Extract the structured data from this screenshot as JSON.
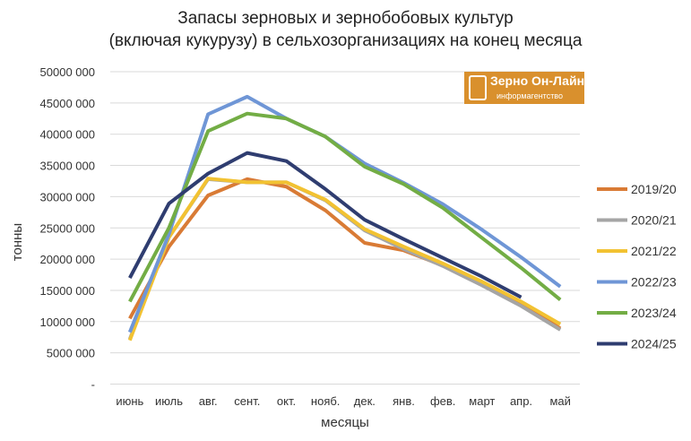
{
  "chart_data": {
    "type": "line",
    "title": "Запасы зерновых и зернобобовых культур",
    "subtitle": "(включая кукурузу) в сельхозорганизациях на конец месяца",
    "xlabel": "месяцы",
    "ylabel": "тонны",
    "ylim": [
      0,
      50000000
    ],
    "yticks": [
      0,
      5000000,
      10000000,
      15000000,
      20000000,
      25000000,
      30000000,
      35000000,
      40000000,
      45000000,
      50000000
    ],
    "ytick_labels": [
      "-",
      "5000 000",
      "10000 000",
      "15000 000",
      "20000 000",
      "25000 000",
      "30000 000",
      "35000 000",
      "40000 000",
      "45000 000",
      "50000 000"
    ],
    "grid": true,
    "legend_position": "right",
    "categories": [
      "июнь",
      "июль",
      "авг.",
      "сент.",
      "окт.",
      "нояб.",
      "дек.",
      "янв.",
      "фев.",
      "март",
      "апр.",
      "май"
    ],
    "series": [
      {
        "name": "2019/20",
        "color": "#d97b35",
        "values": [
          10500000,
          22000000,
          30200000,
          32800000,
          31600000,
          27800000,
          22600000,
          21400000,
          19000000,
          16000000,
          12800000,
          8900000
        ]
      },
      {
        "name": "2020/21",
        "color": "#a5a5a5",
        "values": [
          7200000,
          23500000,
          32800000,
          32300000,
          32300000,
          29400000,
          24600000,
          21600000,
          18900000,
          15800000,
          12500000,
          8700000
        ]
      },
      {
        "name": "2021/22",
        "color": "#f2c232",
        "values": [
          7000000,
          23500000,
          32900000,
          32300000,
          32300000,
          29500000,
          24800000,
          22000000,
          19300000,
          16400000,
          13200000,
          9600000
        ]
      },
      {
        "name": "2022/23",
        "color": "#6f96d6",
        "values": [
          8300000,
          24000000,
          43200000,
          46000000,
          42500000,
          39600000,
          35300000,
          32200000,
          28800000,
          24700000,
          20300000,
          15600000
        ]
      },
      {
        "name": "2023/24",
        "color": "#73ad45",
        "values": [
          13200000,
          25000000,
          40500000,
          43300000,
          42500000,
          39600000,
          34800000,
          32000000,
          28200000,
          23400000,
          18600000,
          13500000
        ]
      },
      {
        "name": "2024/25",
        "color": "#2f3d70",
        "values": [
          17000000,
          28900000,
          33700000,
          37000000,
          35700000,
          31200000,
          26300000,
          23200000,
          20200000,
          17200000,
          13900000,
          null
        ]
      }
    ]
  },
  "logo": {
    "line1": "Зерно Он-Лайн",
    "line2": "информагентство"
  }
}
